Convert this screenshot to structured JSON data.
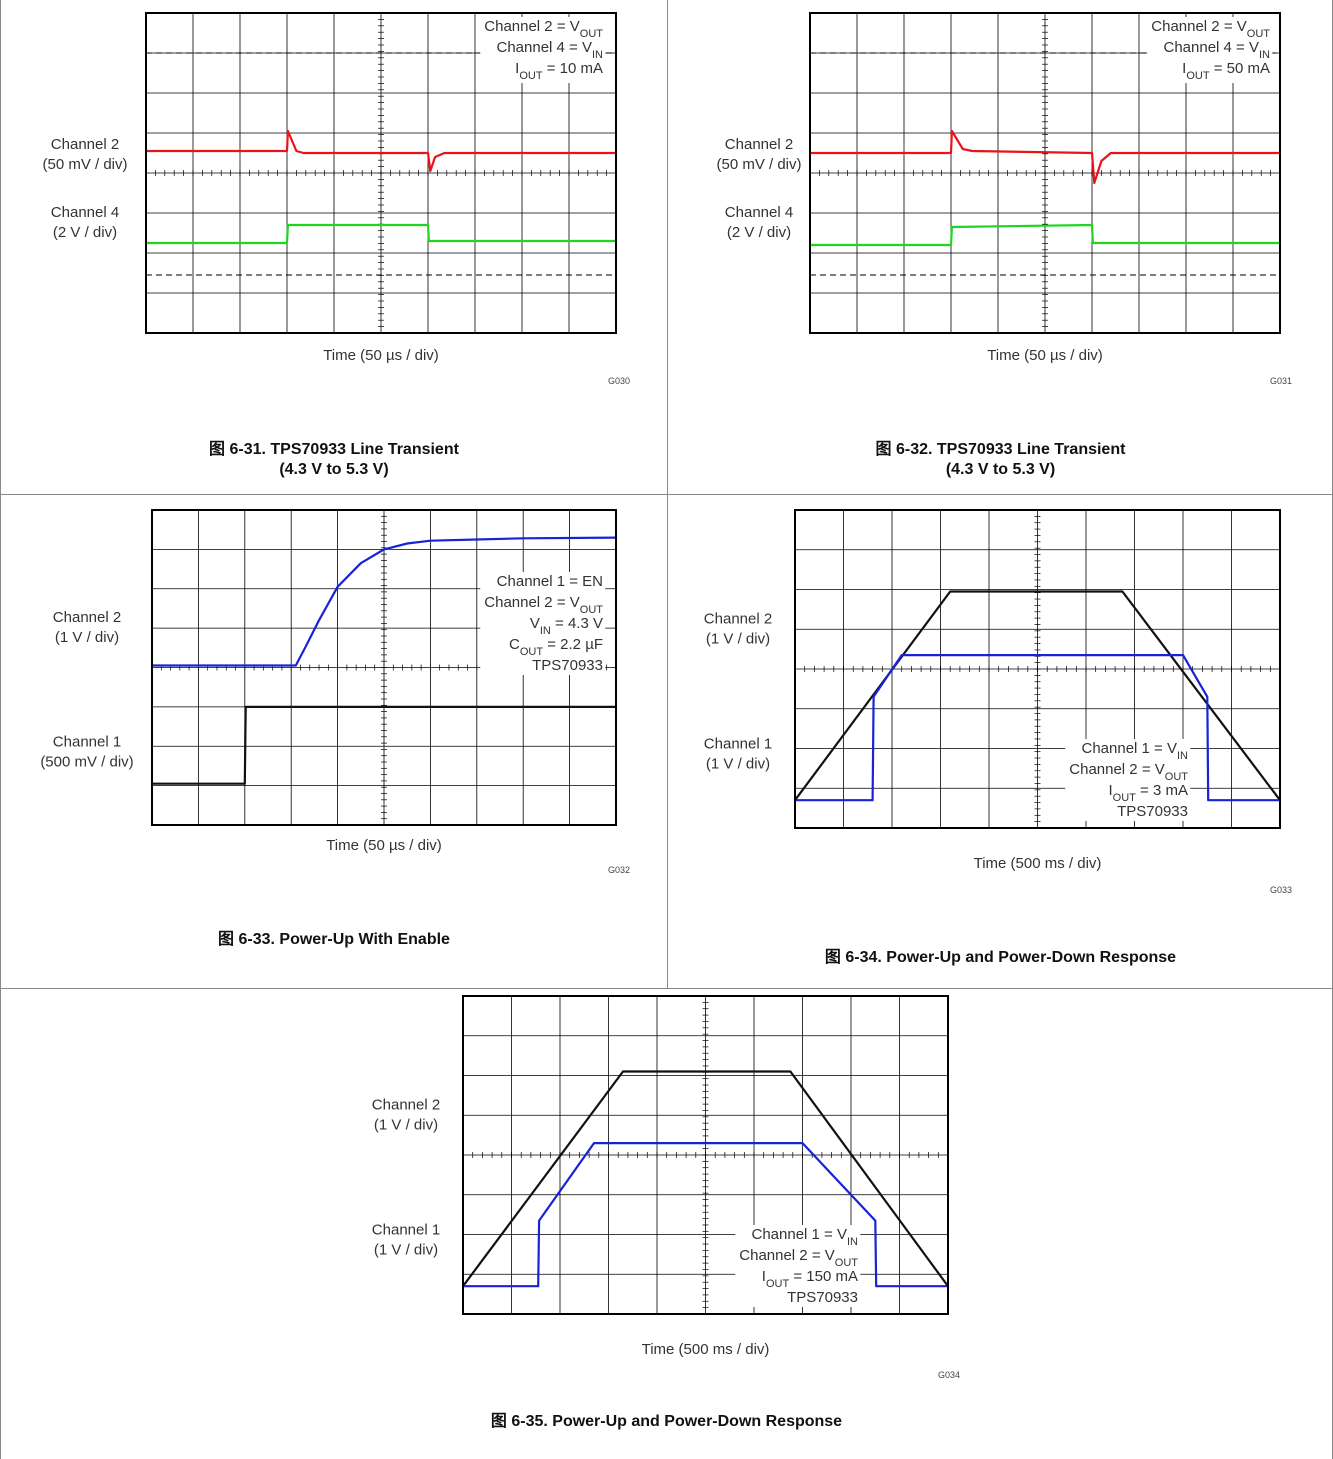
{
  "chart_data": [
    {
      "id": "c31",
      "type": "line",
      "code": "G030",
      "caption": [
        "图 6-31. TPS70933 Line Transient",
        "(4.3 V to 5.3 V)"
      ],
      "xlabel": "Time (50 µs / div)",
      "xlim": [
        0,
        10
      ],
      "ylim": [
        0,
        8
      ],
      "dashed_levels": [
        7.0,
        1.45
      ],
      "legend": [
        {
          "main": "Channel 2 = V",
          "sub": "OUT"
        },
        {
          "main": "Channel 4 = V",
          "sub": "IN"
        },
        {
          "main": "I",
          "sub": "OUT",
          "tail": " = 10 mA"
        }
      ],
      "channel_labels": [
        {
          "name": "Channel 2",
          "scale": "(50 mV / div)",
          "level": 4.6
        },
        {
          "name": "Channel 4",
          "scale": "(2 V / div)",
          "level": 2.9
        }
      ],
      "series": [
        {
          "name": "Channel 2",
          "color": "#e8141a",
          "x": [
            0,
            3.0,
            3.02,
            3.2,
            3.35,
            6.0,
            6.05,
            6.15,
            6.35,
            10
          ],
          "y": [
            4.55,
            4.55,
            5.05,
            4.55,
            4.5,
            4.5,
            4.05,
            4.4,
            4.5,
            4.5
          ]
        },
        {
          "name": "Channel 4",
          "color": "#1ed61e",
          "x": [
            0,
            3.0,
            3.02,
            6.0,
            6.02,
            10
          ],
          "y": [
            2.25,
            2.25,
            2.7,
            2.7,
            2.3,
            2.3
          ]
        }
      ]
    },
    {
      "id": "c32",
      "type": "line",
      "code": "G031",
      "caption": [
        "图 6-32. TPS70933 Line Transient",
        "(4.3 V to 5.3 V)"
      ],
      "xlabel": "Time (50 µs / div)",
      "xlim": [
        0,
        10
      ],
      "ylim": [
        0,
        8
      ],
      "dashed_levels": [
        7.0,
        1.45
      ],
      "legend": [
        {
          "main": "Channel 2 = V",
          "sub": "OUT"
        },
        {
          "main": "Channel 4 = V",
          "sub": "IN"
        },
        {
          "main": "I",
          "sub": "OUT",
          "tail": " = 50 mA"
        }
      ],
      "channel_labels": [
        {
          "name": "Channel 2",
          "scale": "(50 mV / div)",
          "level": 4.6
        },
        {
          "name": "Channel 4",
          "scale": "(2 V / div)",
          "level": 2.9
        }
      ],
      "series": [
        {
          "name": "Channel 2",
          "color": "#e8141a",
          "x": [
            0,
            3.0,
            3.02,
            3.25,
            3.45,
            6.0,
            6.05,
            6.2,
            6.4,
            10
          ],
          "y": [
            4.5,
            4.5,
            5.05,
            4.6,
            4.55,
            4.5,
            3.75,
            4.3,
            4.5,
            4.5
          ]
        },
        {
          "name": "Channel 4",
          "color": "#1ed61e",
          "x": [
            0,
            3.0,
            3.02,
            6.0,
            6.02,
            10
          ],
          "y": [
            2.2,
            2.2,
            2.65,
            2.7,
            2.25,
            2.25
          ]
        }
      ]
    },
    {
      "id": "c33",
      "type": "line",
      "code": "G032",
      "caption": [
        "图 6-33. Power-Up With Enable"
      ],
      "xlabel": "Time (50 µs / div)",
      "xlim": [
        0,
        10
      ],
      "ylim": [
        0,
        8
      ],
      "dashed_levels": [],
      "legend": [
        {
          "main": "Channel 1 = EN"
        },
        {
          "main": "Channel 2 = V",
          "sub": "OUT"
        },
        {
          "main": "V",
          "sub": "IN",
          "tail": " = 4.3 V"
        },
        {
          "main": "C",
          "sub": "OUT",
          "tail": " = 2.2 µF"
        },
        {
          "main": "TPS70933"
        }
      ],
      "channel_labels": [
        {
          "name": "Channel 2",
          "scale": "(1 V / div)",
          "level": 5.15
        },
        {
          "name": "Channel 1",
          "scale": "(500 mV / div)",
          "level": 2.0
        }
      ],
      "series": [
        {
          "name": "Channel 2",
          "color": "#1a22d6",
          "x": [
            0,
            3.1,
            3.3,
            3.6,
            4.0,
            4.5,
            5.0,
            5.5,
            6.0,
            7.0,
            8.0,
            10
          ],
          "y": [
            4.05,
            4.05,
            4.5,
            5.2,
            6.05,
            6.65,
            7.0,
            7.15,
            7.22,
            7.25,
            7.28,
            7.3
          ]
        },
        {
          "name": "Channel 1",
          "color": "#111111",
          "x": [
            0,
            2.0,
            2.02,
            10
          ],
          "y": [
            1.05,
            1.05,
            3.0,
            3.0
          ]
        }
      ]
    },
    {
      "id": "c34",
      "type": "line",
      "code": "G033",
      "caption": [
        "图 6-34. Power-Up and Power-Down Response"
      ],
      "xlabel": "Time (500 ms / div)",
      "xlim": [
        0,
        10
      ],
      "ylim": [
        0,
        8
      ],
      "dashed_levels": [],
      "legend": [
        {
          "main": "Channel 1 = V",
          "sub": "IN"
        },
        {
          "main": "Channel 2 = V",
          "sub": "OUT"
        },
        {
          "main": "I",
          "sub": "OUT",
          "tail": " = 3 mA"
        },
        {
          "main": "TPS70933"
        }
      ],
      "channel_labels": [
        {
          "name": "Channel 2",
          "scale": "(1 V / div)",
          "level": 5.15
        },
        {
          "name": "Channel 1",
          "scale": "(1 V / div)",
          "level": 2.0
        }
      ],
      "series": [
        {
          "name": "Channel 1",
          "color": "#111111",
          "x": [
            0,
            3.2,
            6.75,
            10
          ],
          "y": [
            0.7,
            5.95,
            5.95,
            0.7
          ]
        },
        {
          "name": "Channel 2",
          "color": "#1a22d6",
          "x": [
            0,
            1.6,
            1.62,
            2.2,
            8.0,
            8.5,
            8.52,
            10
          ],
          "y": [
            0.7,
            0.7,
            3.3,
            4.35,
            4.35,
            3.3,
            0.7,
            0.7
          ]
        }
      ]
    },
    {
      "id": "c35",
      "type": "line",
      "code": "G034",
      "caption": [
        "图 6-35. Power-Up and Power-Down Response"
      ],
      "xlabel": "Time (500 ms / div)",
      "xlim": [
        0,
        10
      ],
      "ylim": [
        0,
        8
      ],
      "dashed_levels": [],
      "legend": [
        {
          "main": "Channel 1 = V",
          "sub": "IN"
        },
        {
          "main": "Channel 2 = V",
          "sub": "OUT"
        },
        {
          "main": "I",
          "sub": "OUT",
          "tail": " = 150 mA"
        },
        {
          "main": "TPS70933"
        }
      ],
      "channel_labels": [
        {
          "name": "Channel 2",
          "scale": "(1 V / div)",
          "level": 5.15
        },
        {
          "name": "Channel 1",
          "scale": "(1 V / div)",
          "level": 2.0
        }
      ],
      "series": [
        {
          "name": "Channel 1",
          "color": "#111111",
          "x": [
            0,
            3.3,
            6.75,
            10
          ],
          "y": [
            0.7,
            6.1,
            6.1,
            0.7
          ]
        },
        {
          "name": "Channel 2",
          "color": "#1a22d6",
          "x": [
            0,
            1.55,
            1.57,
            2.7,
            7.0,
            8.5,
            8.52,
            10
          ],
          "y": [
            0.7,
            0.7,
            2.35,
            4.3,
            4.3,
            2.35,
            0.7,
            0.7
          ]
        }
      ]
    }
  ]
}
